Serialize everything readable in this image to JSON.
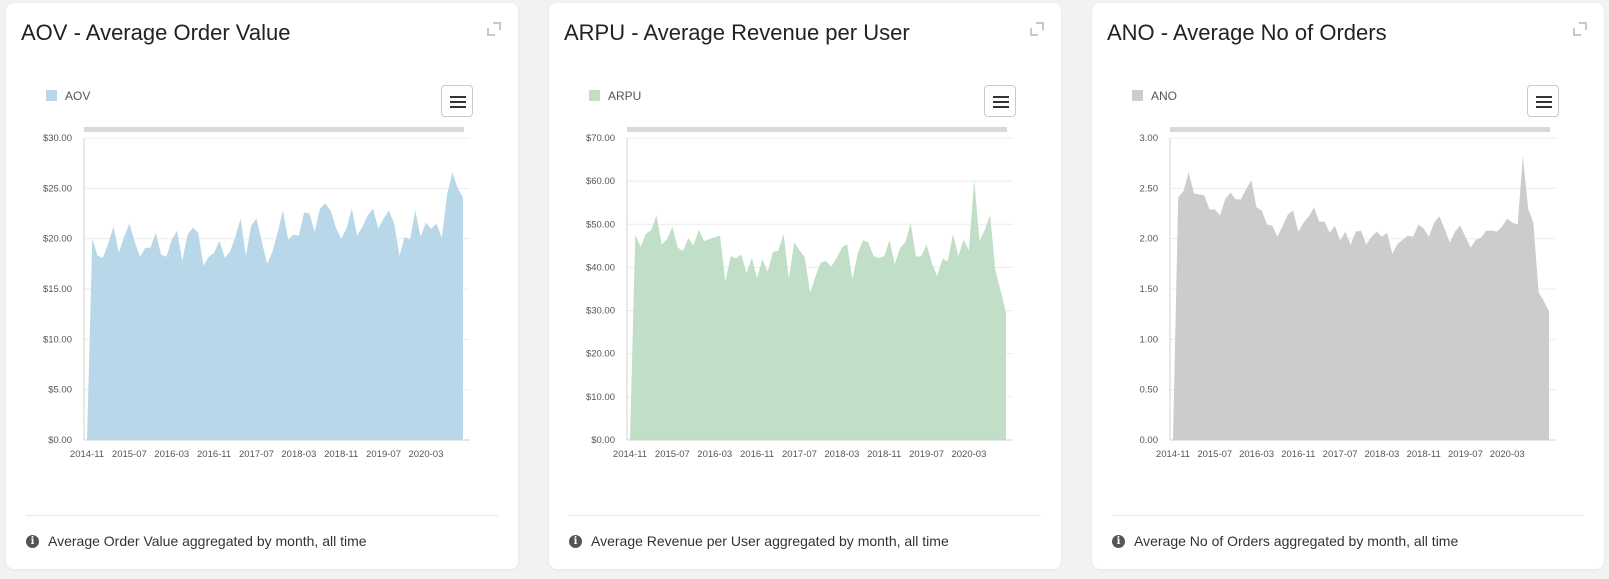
{
  "cards": [
    {
      "title": "AOV - Average Order Value",
      "footer": "Average Order Value aggregated by month, all time",
      "color": "#b8d7e8",
      "legend": "AOV",
      "y_ticks": [
        "$0.00",
        "$5.00",
        "$10.00",
        "$15.00",
        "$20.00",
        "$25.00",
        "$30.00"
      ],
      "x_ticks": [
        "2014-11",
        "2015-07",
        "2016-03",
        "2016-11",
        "2017-07",
        "2018-03",
        "2018-11",
        "2019-07",
        "2020-03"
      ]
    },
    {
      "title": "ARPU - Average Revenue per User",
      "footer": "Average Revenue per User aggregated by month, all time",
      "color": "#c1dec7",
      "legend": "ARPU",
      "y_ticks": [
        "$0.00",
        "$10.00",
        "$20.00",
        "$30.00",
        "$40.00",
        "$50.00",
        "$60.00",
        "$70.00"
      ],
      "x_ticks": [
        "2014-11",
        "2015-07",
        "2016-03",
        "2016-11",
        "2017-07",
        "2018-03",
        "2018-11",
        "2019-07",
        "2020-03"
      ]
    },
    {
      "title": "ANO - Average No of Orders",
      "footer": "Average No of Orders aggregated by month, all time",
      "color": "#cccccc",
      "legend": "ANO",
      "y_ticks": [
        "0.00",
        "0.50",
        "1.00",
        "1.50",
        "2.00",
        "2.50",
        "3.00"
      ],
      "x_ticks": [
        "2014-11",
        "2015-07",
        "2016-03",
        "2016-11",
        "2017-07",
        "2018-03",
        "2018-11",
        "2019-07",
        "2020-03"
      ]
    }
  ],
  "chart_data": [
    {
      "type": "area",
      "title": "AOV - Average Order Value",
      "series": [
        {
          "name": "AOV",
          "values": [
            0,
            20,
            18.3,
            18.1,
            19.5,
            21.2,
            18.6,
            20.2,
            21.5,
            19.7,
            18.2,
            19.1,
            19.1,
            20.6,
            18.4,
            18.2,
            19.9,
            20.8,
            17.8,
            20.4,
            21.1,
            20.6,
            17.3,
            18.2,
            18.6,
            19.8,
            18.1,
            18.7,
            20.2,
            22,
            18.3,
            21.3,
            22,
            19.7,
            17.5,
            18.7,
            20.6,
            22.8,
            19.9,
            20.4,
            20.3,
            22.6,
            22.5,
            20.7,
            23,
            23.5,
            22.8,
            21.1,
            20,
            21,
            23,
            20.3,
            21.2,
            22.3,
            23,
            21,
            22,
            22.8,
            21.5,
            18.3,
            20.2,
            19.9,
            22.8,
            20.2,
            21.6,
            21,
            21.5,
            20.1,
            24.4,
            26.6,
            25,
            24.1
          ]
        }
      ],
      "x_start": "2014-11",
      "x_interval": "month",
      "x_ticks": [
        "2014-11",
        "2015-07",
        "2016-03",
        "2016-11",
        "2017-07",
        "2018-03",
        "2018-11",
        "2019-07",
        "2020-03"
      ],
      "ylim": [
        0,
        30
      ]
    },
    {
      "type": "area",
      "title": "ARPU - Average Revenue per User",
      "series": [
        {
          "name": "ARPU",
          "values": [
            0,
            47.6,
            44.8,
            47.8,
            48.6,
            52.1,
            45.3,
            46.6,
            49.4,
            44.6,
            43.8,
            46.8,
            45.1,
            48.7,
            46.1,
            46.6,
            47,
            47.4,
            36.7,
            42.6,
            42.1,
            43,
            38.7,
            42.2,
            37.5,
            41.9,
            39,
            43.6,
            43.8,
            47.8,
            37.4,
            45.8,
            44,
            42.3,
            34.1,
            37.9,
            41.1,
            41.5,
            40.2,
            42.1,
            44.6,
            45.4,
            37.2,
            43.2,
            46.3,
            45.8,
            42.6,
            42.2,
            42.6,
            46.3,
            40.7,
            44.5,
            45.9,
            50.2,
            42.5,
            42.6,
            45.3,
            40.9,
            38,
            42,
            41.4,
            47.7,
            42.6,
            46.4,
            44,
            60.4,
            46.1,
            48.7,
            52.1,
            39.2,
            34.6,
            29.4
          ]
        }
      ],
      "x_start": "2014-11",
      "x_interval": "month",
      "x_ticks": [
        "2014-11",
        "2015-07",
        "2016-03",
        "2016-11",
        "2017-07",
        "2018-03",
        "2018-11",
        "2019-07",
        "2020-03"
      ],
      "ylim": [
        0,
        70
      ]
    },
    {
      "type": "area",
      "title": "ANO - Average No of Orders",
      "series": [
        {
          "name": "ANO",
          "values": [
            0,
            2.41,
            2.47,
            2.66,
            2.45,
            2.44,
            2.43,
            2.29,
            2.29,
            2.23,
            2.39,
            2.46,
            2.39,
            2.39,
            2.49,
            2.58,
            2.31,
            2.28,
            2.14,
            2.13,
            2.02,
            2.13,
            2.24,
            2.28,
            2.07,
            2.16,
            2.22,
            2.31,
            2.17,
            2.17,
            2.06,
            2.13,
            1.98,
            2.07,
            1.94,
            2.07,
            2.08,
            1.94,
            2.02,
            2.07,
            2.02,
            2.06,
            1.85,
            1.95,
            1.99,
            2.03,
            2.02,
            2.14,
            2.1,
            2.02,
            2.16,
            2.22,
            2.1,
            1.96,
            2.07,
            2.13,
            2.02,
            1.91,
            1.99,
            2.01,
            2.08,
            2.08,
            2.07,
            2.12,
            2.2,
            2.16,
            2.14,
            2.82,
            2.3,
            2.16,
            1.47,
            1.38,
            1.28
          ]
        }
      ],
      "x_start": "2014-11",
      "x_interval": "month",
      "x_ticks": [
        "2014-11",
        "2015-07",
        "2016-03",
        "2016-11",
        "2017-07",
        "2018-03",
        "2018-11",
        "2019-07",
        "2020-03"
      ],
      "ylim": [
        0,
        3
      ]
    }
  ]
}
